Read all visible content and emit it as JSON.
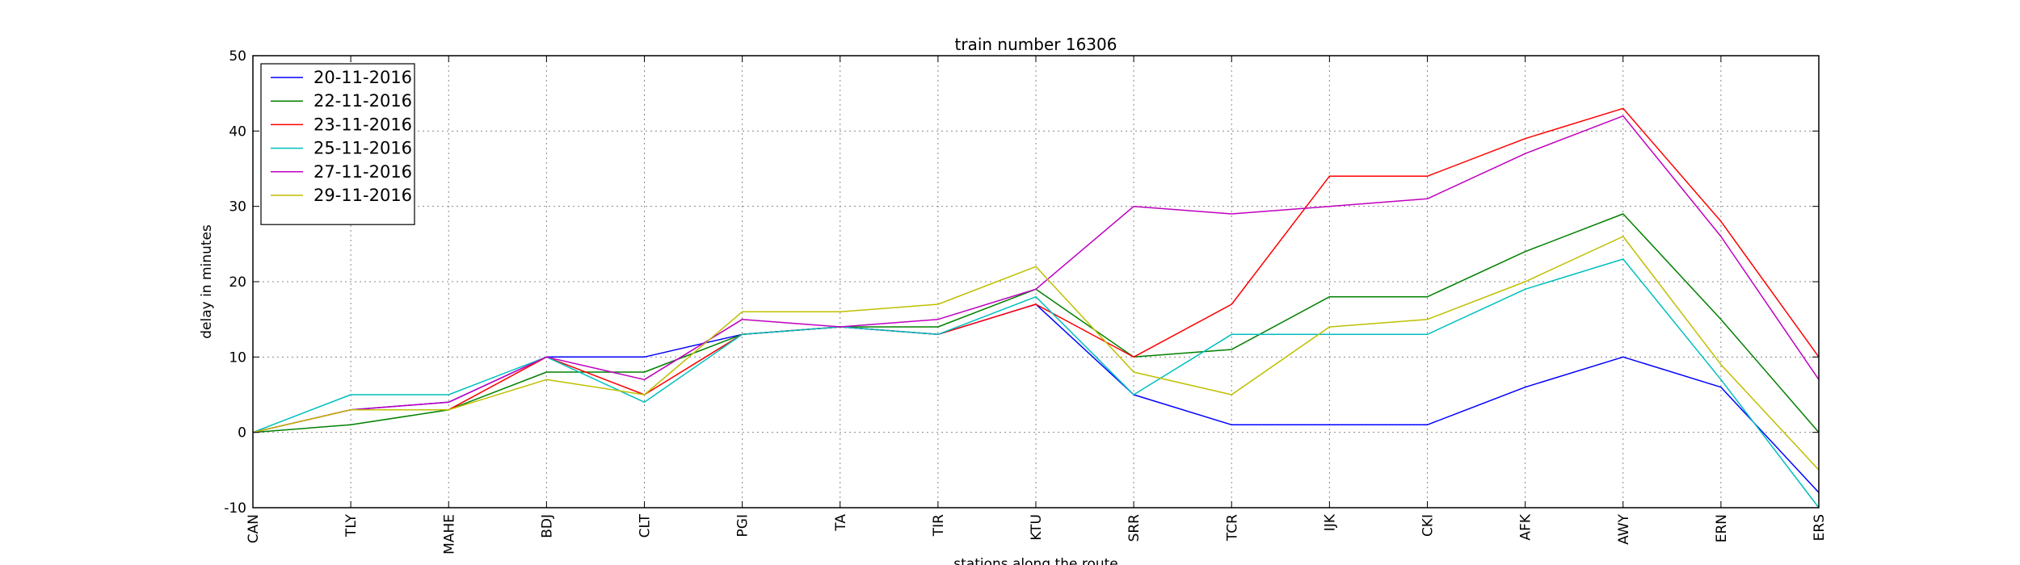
{
  "chart_data": {
    "type": "line",
    "title": "train number 16306",
    "xlabel": "stations along the route",
    "ylabel": "delay in minutes",
    "categories": [
      "CAN",
      "TLY",
      "MAHE",
      "BDJ",
      "CLT",
      "PGI",
      "TA",
      "TIR",
      "KTU",
      "SRR",
      "TCR",
      "IJK",
      "CKI",
      "AFK",
      "AWY",
      "ERN",
      "ERS"
    ],
    "ylim": [
      -10,
      50
    ],
    "yticks": [
      -10,
      0,
      10,
      20,
      30,
      40,
      50
    ],
    "grid": true,
    "legend_position": "top-left",
    "series": [
      {
        "name": "20-11-2016",
        "color": "#0000ff",
        "values": [
          0,
          3,
          4,
          10,
          10,
          13,
          14,
          13,
          17,
          5,
          1,
          1,
          1,
          6,
          10,
          6,
          -8
        ]
      },
      {
        "name": "22-11-2016",
        "color": "#008000",
        "values": [
          0,
          1,
          3,
          8,
          8,
          13,
          14,
          14,
          19,
          10,
          11,
          18,
          18,
          24,
          29,
          15,
          0
        ]
      },
      {
        "name": "23-11-2016",
        "color": "#ff0000",
        "values": [
          0,
          3,
          3,
          10,
          5,
          13,
          14,
          13,
          17,
          10,
          17,
          34,
          34,
          39,
          43,
          28,
          10
        ]
      },
      {
        "name": "25-11-2016",
        "color": "#00bfbf",
        "values": [
          0,
          5,
          5,
          10,
          4,
          13,
          14,
          13,
          18,
          5,
          13,
          13,
          13,
          19,
          23,
          7,
          -10
        ]
      },
      {
        "name": "27-11-2016",
        "color": "#bf00bf",
        "values": [
          0,
          3,
          4,
          10,
          7,
          15,
          14,
          15,
          19,
          30,
          29,
          30,
          31,
          37,
          42,
          26,
          7
        ]
      },
      {
        "name": "29-11-2016",
        "color": "#bfbf00",
        "values": [
          0,
          3,
          3,
          7,
          5,
          16,
          16,
          17,
          22,
          8,
          5,
          14,
          15,
          20,
          26,
          9,
          -5
        ]
      }
    ]
  }
}
